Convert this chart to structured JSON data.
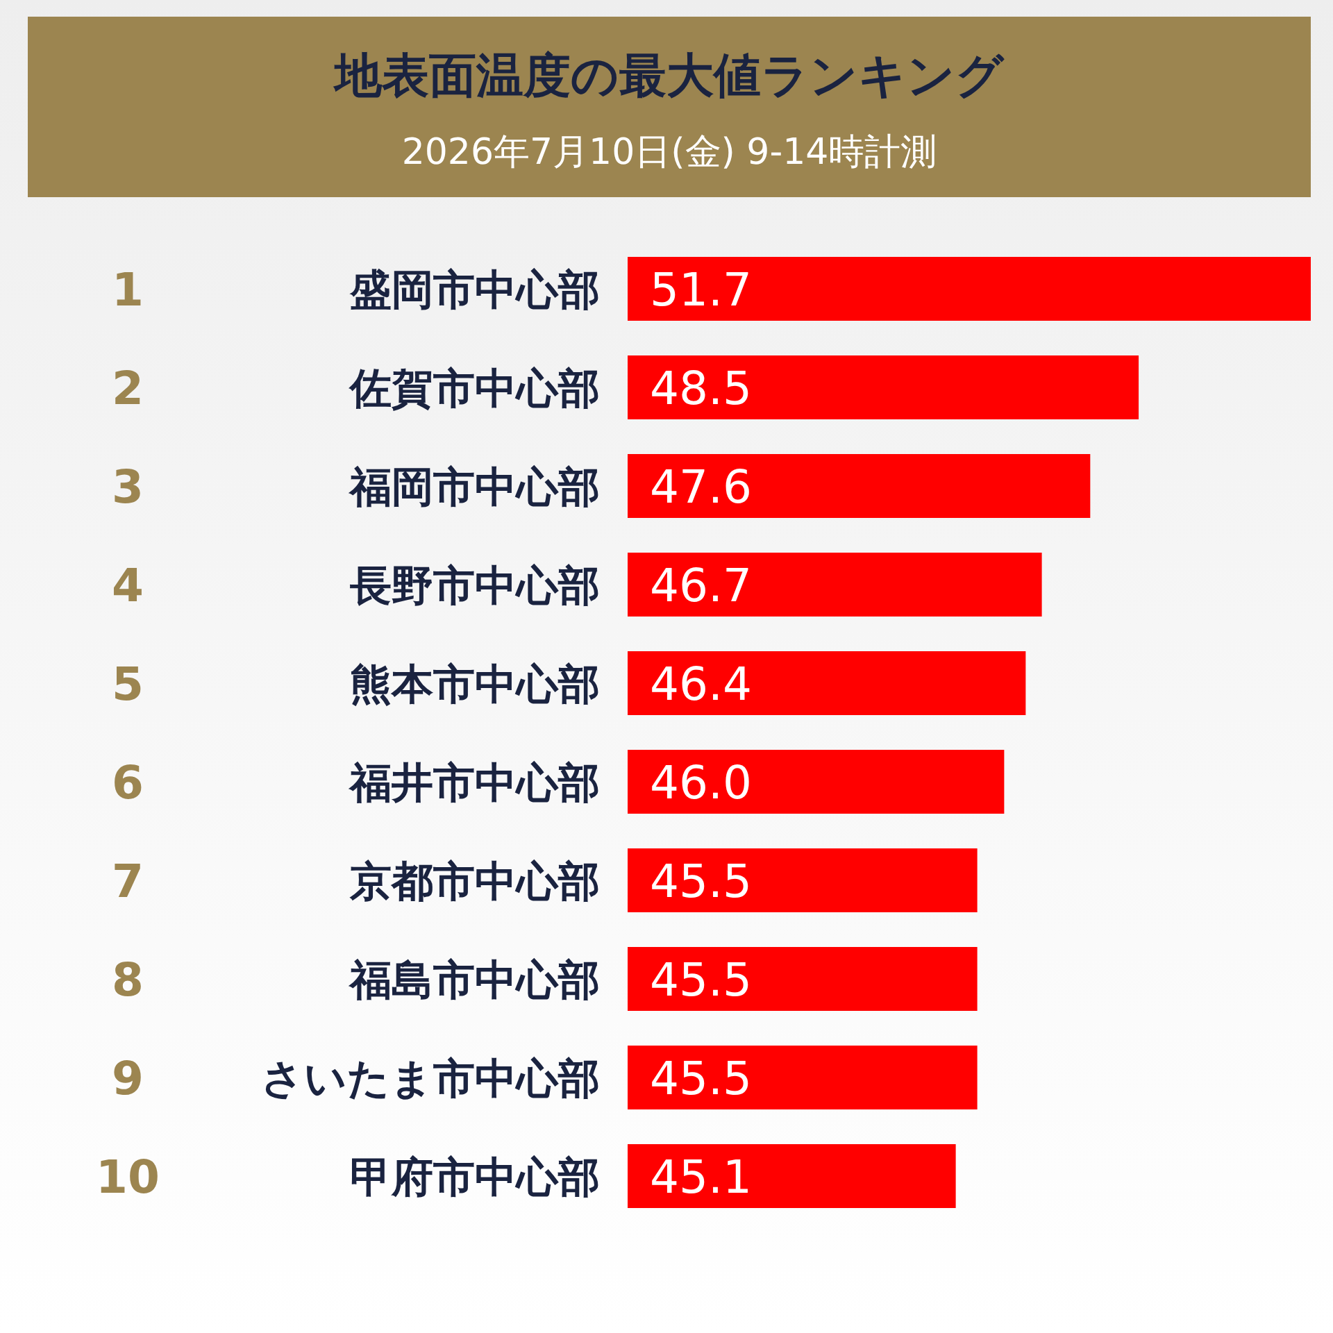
{
  "chart_data": {
    "type": "bar",
    "orientation": "horizontal",
    "title": "地表面温度の最大値ランキング",
    "subtitle": "2026年7月10日(金) 9-14時計測",
    "categories": [
      "盛岡市中心部",
      "佐賀市中心部",
      "福岡市中心部",
      "長野市中心部",
      "熊本市中心部",
      "福井市中心部",
      "京都市中心部",
      "福島市中心部",
      "さいたま市中心部",
      "甲府市中心部"
    ],
    "values": [
      51.7,
      48.5,
      47.6,
      46.7,
      46.4,
      46.0,
      45.5,
      45.5,
      45.5,
      45.1
    ],
    "value_labels": [
      "51.7",
      "48.5",
      "47.6",
      "46.7",
      "46.4",
      "46.0",
      "45.5",
      "45.5",
      "45.5",
      "45.1"
    ],
    "color": "#ff0000",
    "xlim": [
      39,
      51.7
    ],
    "annotations": [
      "1",
      "2",
      "3",
      "4",
      "5",
      "6",
      "7",
      "8",
      "9",
      "10"
    ]
  }
}
